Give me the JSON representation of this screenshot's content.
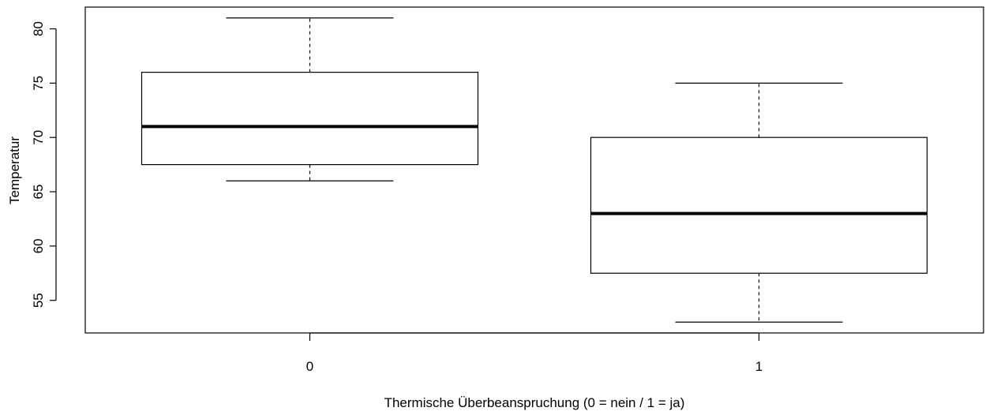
{
  "chart_data": {
    "type": "boxplot",
    "xlabel": "Thermische Überbeanspruchung (0 = nein / 1 = ja)",
    "ylabel": "Temperatur",
    "ylim": [
      52,
      82
    ],
    "yticks": [
      55,
      60,
      65,
      70,
      75,
      80
    ],
    "grid": false,
    "categories": [
      "0",
      "1"
    ],
    "boxes": [
      {
        "category": "0",
        "whisker_low": 66,
        "q1": 67.5,
        "median": 71,
        "q3": 76,
        "whisker_high": 81
      },
      {
        "category": "1",
        "whisker_low": 53,
        "q1": 57.5,
        "median": 63,
        "q3": 70,
        "whisker_high": 75
      }
    ],
    "colors": {
      "box_fill": "#ffffff",
      "stroke": "#000000"
    }
  }
}
